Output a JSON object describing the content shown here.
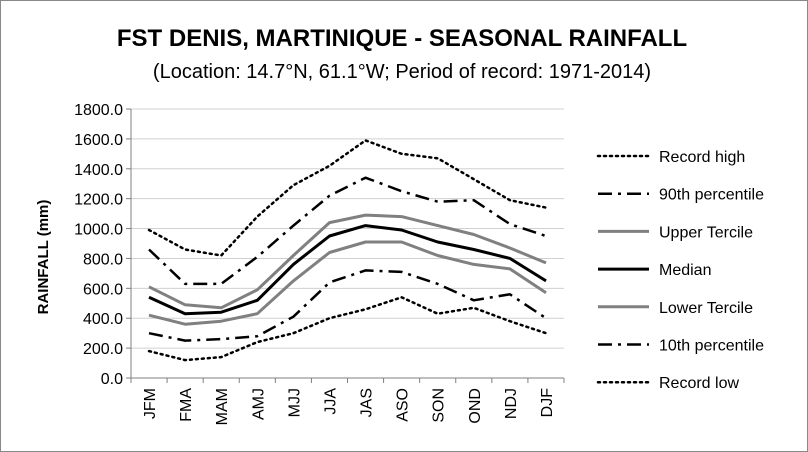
{
  "chart_data": {
    "type": "line",
    "title": "FST DENIS, MARTINIQUE - SEASONAL RAINFALL",
    "subtitle": "(Location: 14.7°N, 61.1°W; Period of record: 1971-2014)",
    "xlabel": "",
    "ylabel": "RAINFALL (mm)",
    "ylim": [
      0,
      1800
    ],
    "yticks": [
      "0.0",
      "200.0",
      "400.0",
      "600.0",
      "800.0",
      "1000.0",
      "1200.0",
      "1400.0",
      "1600.0",
      "1800.0"
    ],
    "grid": true,
    "legend": "right",
    "categories": [
      "JFM",
      "FMA",
      "MAM",
      "AMJ",
      "MJJ",
      "JJA",
      "JAS",
      "ASO",
      "SON",
      "OND",
      "NDJ",
      "DJF"
    ],
    "series": [
      {
        "name": "Record high",
        "style": "dotted",
        "color": "#000000",
        "values": [
          990,
          860,
          820,
          1080,
          1290,
          1420,
          1590,
          1500,
          1470,
          1330,
          1190,
          1140
        ]
      },
      {
        "name": "90th percentile",
        "style": "dashdot",
        "color": "#000000",
        "values": [
          860,
          630,
          630,
          810,
          1020,
          1220,
          1340,
          1250,
          1180,
          1190,
          1030,
          950
        ]
      },
      {
        "name": "Upper Tercile",
        "style": "solid",
        "color": "#808080",
        "values": [
          610,
          490,
          470,
          590,
          820,
          1040,
          1090,
          1080,
          1020,
          960,
          870,
          770
        ]
      },
      {
        "name": "Median",
        "style": "solid",
        "color": "#000000",
        "values": [
          540,
          430,
          440,
          520,
          760,
          950,
          1020,
          990,
          910,
          860,
          800,
          650
        ]
      },
      {
        "name": "Lower Tercile",
        "style": "solid",
        "color": "#808080",
        "values": [
          420,
          360,
          380,
          430,
          650,
          840,
          910,
          910,
          820,
          760,
          730,
          570
        ]
      },
      {
        "name": "10th percentile",
        "style": "dashdot",
        "color": "#000000",
        "values": [
          300,
          250,
          260,
          280,
          410,
          640,
          720,
          710,
          630,
          520,
          560,
          400
        ]
      },
      {
        "name": "Record low",
        "style": "dotted",
        "color": "#000000",
        "values": [
          180,
          120,
          140,
          240,
          300,
          400,
          460,
          540,
          430,
          470,
          380,
          300
        ]
      }
    ]
  }
}
